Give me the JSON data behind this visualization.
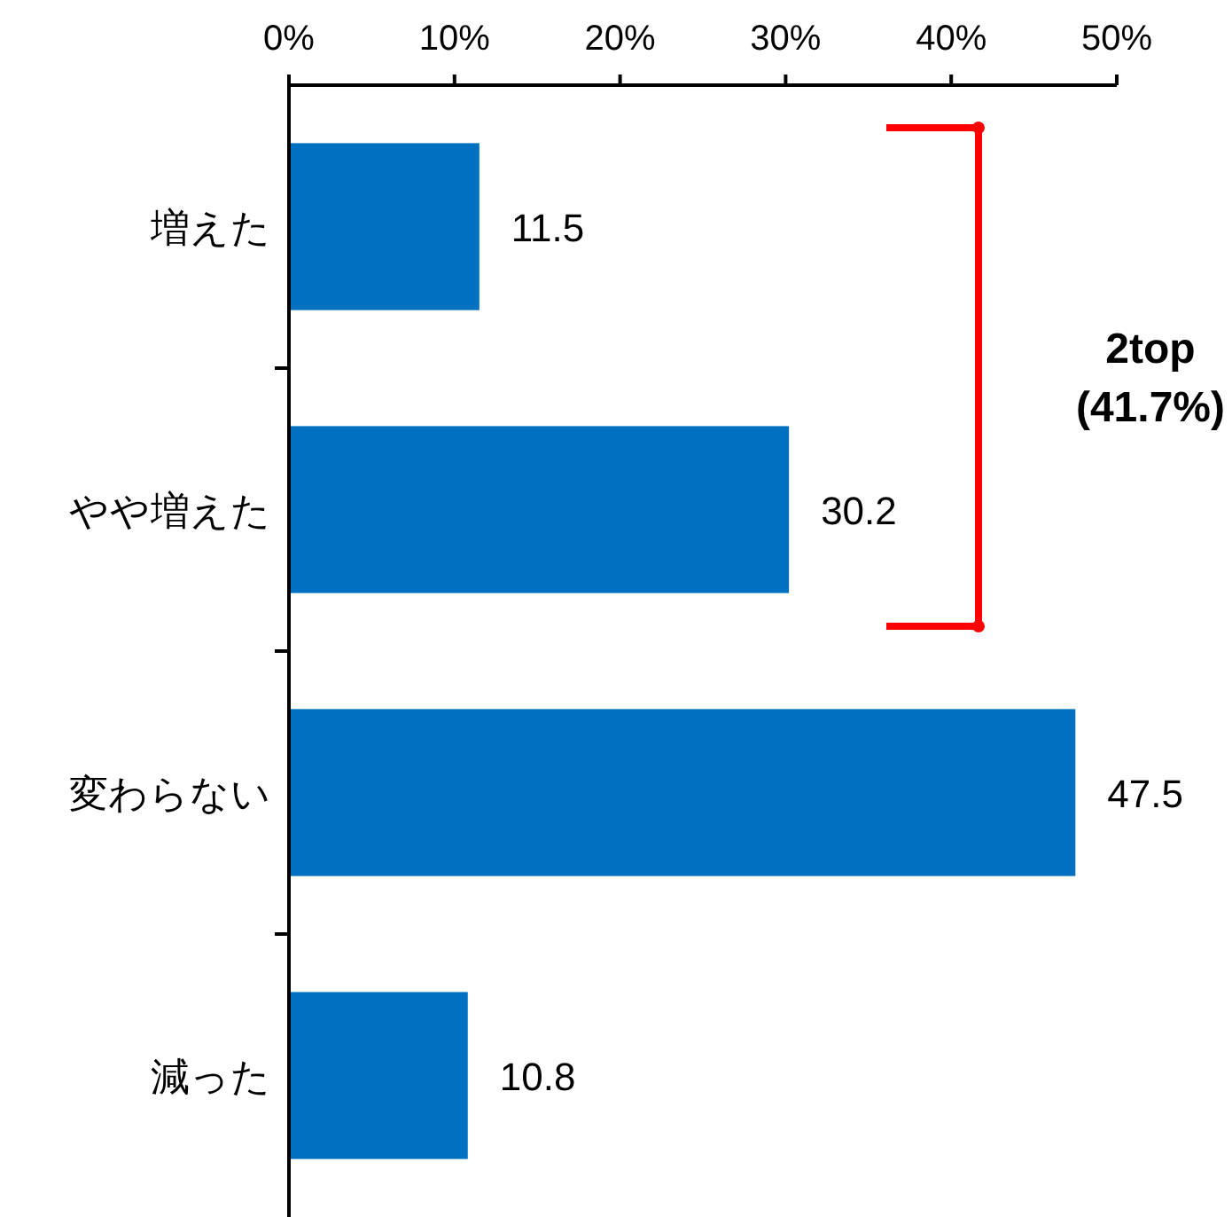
{
  "chart_data": {
    "type": "bar",
    "orientation": "horizontal",
    "categories": [
      "増えた",
      "やや増えた",
      "変わらない",
      "減った"
    ],
    "values": [
      11.5,
      30.2,
      47.5,
      10.8
    ],
    "color": "#0070c0",
    "xlim": [
      0,
      50
    ],
    "xticks": [
      {
        "value": 0,
        "label": "0%"
      },
      {
        "value": 10,
        "label": "10%"
      },
      {
        "value": 20,
        "label": "20%"
      },
      {
        "value": 30,
        "label": "30%"
      },
      {
        "value": 40,
        "label": "40%"
      },
      {
        "value": 50,
        "label": "50%"
      }
    ],
    "data_labels": true,
    "grid": false,
    "annotations": [
      "2top\n(41.7%)"
    ]
  }
}
